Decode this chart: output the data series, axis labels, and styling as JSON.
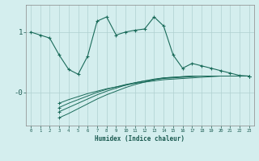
{
  "title": "",
  "xlabel": "Humidex (Indice chaleur)",
  "bg_color": "#d4eeee",
  "grid_color": "#b0d0d0",
  "line_color": "#1a6b5a",
  "xlim": [
    -0.5,
    23.5
  ],
  "ylim": [
    -0.55,
    1.45
  ],
  "x": [
    0,
    1,
    2,
    3,
    4,
    5,
    6,
    7,
    8,
    9,
    10,
    11,
    12,
    13,
    14,
    15,
    16,
    17,
    18,
    19,
    20,
    21,
    22,
    23
  ],
  "y_main": [
    1.0,
    0.95,
    0.9,
    0.62,
    0.38,
    0.3,
    0.6,
    1.18,
    1.25,
    0.95,
    1.0,
    1.03,
    1.05,
    1.25,
    1.1,
    0.62,
    0.4,
    0.48,
    0.44,
    0.4,
    0.36,
    0.32,
    0.28,
    0.27
  ],
  "y_line1": [
    null,
    null,
    null,
    -0.18,
    -0.12,
    -0.07,
    -0.02,
    0.02,
    0.06,
    0.09,
    0.12,
    0.15,
    0.17,
    0.19,
    0.21,
    0.22,
    0.23,
    0.24,
    0.25,
    0.26,
    0.27,
    0.27,
    0.27,
    0.27
  ],
  "y_line2": [
    null,
    null,
    null,
    -0.25,
    -0.18,
    -0.12,
    -0.06,
    0.0,
    0.05,
    0.09,
    0.13,
    0.16,
    0.19,
    0.21,
    0.23,
    0.24,
    0.25,
    0.26,
    0.27,
    0.27,
    0.27,
    0.27,
    0.27,
    0.27
  ],
  "y_line3": [
    null,
    null,
    null,
    -0.32,
    -0.25,
    -0.18,
    -0.11,
    -0.04,
    0.02,
    0.07,
    0.12,
    0.16,
    0.19,
    0.22,
    0.24,
    0.25,
    0.26,
    0.27,
    0.27,
    0.27,
    0.27,
    0.27,
    0.27,
    0.27
  ],
  "y_line4": [
    null,
    null,
    null,
    -0.42,
    -0.35,
    -0.27,
    -0.19,
    -0.11,
    -0.04,
    0.02,
    0.08,
    0.13,
    0.17,
    0.21,
    0.24,
    0.25,
    0.26,
    0.27,
    0.27,
    0.27,
    0.27,
    0.27,
    0.27,
    0.27
  ],
  "ytick_positions": [
    1.0,
    0.0
  ],
  "ytick_labels": [
    "1",
    "-0"
  ]
}
